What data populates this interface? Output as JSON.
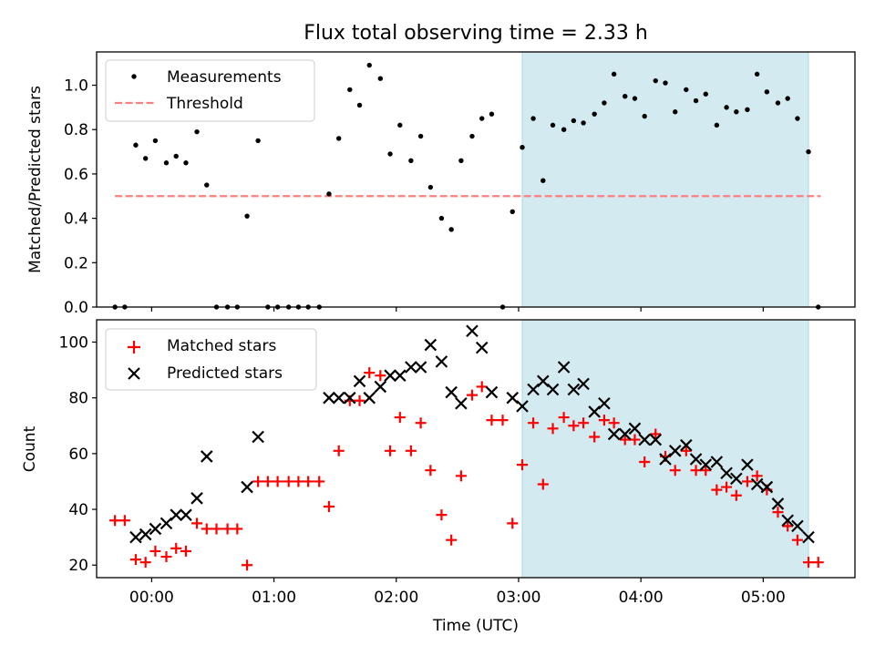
{
  "figure": {
    "title": "Flux total observing time = 2.33 h"
  },
  "colors": {
    "measurement": "#000000",
    "threshold": "#ff7f7f",
    "matched": "#ff0000",
    "predicted": "#000000",
    "shade": "#d3eaf0",
    "shade_edge": "#add8e6"
  },
  "chart_data": [
    {
      "type": "scatter",
      "panel": "top",
      "title": "Flux total observing time = 2.33 h",
      "xlabel": "",
      "ylabel": "Matched/Predicted stars",
      "xlim": [
        -0.45,
        5.75
      ],
      "ylim": [
        0,
        1.15
      ],
      "yticks": [
        0.0,
        0.2,
        0.4,
        0.6,
        0.8,
        1.0
      ],
      "ytick_labels": [
        "0.0",
        "0.2",
        "0.4",
        "0.6",
        "0.8",
        "1.0"
      ],
      "xticks": [
        0,
        1,
        2,
        3,
        4,
        5
      ],
      "shaded_x_range": [
        3.03,
        5.37
      ],
      "legend": {
        "position": "top-left",
        "entries": [
          "Measurements",
          "Threshold"
        ]
      },
      "threshold": {
        "name": "Threshold",
        "x": [
          -0.3,
          5.47
        ],
        "y": 0.5
      },
      "series": [
        {
          "name": "Measurements",
          "x": [
            -0.3,
            -0.22,
            -0.13,
            -0.05,
            0.03,
            0.12,
            0.2,
            0.28,
            0.37,
            0.45,
            0.53,
            0.62,
            0.7,
            0.78,
            0.87,
            0.95,
            1.03,
            1.12,
            1.2,
            1.28,
            1.37,
            1.45,
            1.53,
            1.62,
            1.7,
            1.78,
            1.87,
            1.95,
            2.03,
            2.12,
            2.2,
            2.28,
            2.37,
            2.45,
            2.53,
            2.62,
            2.7,
            2.78,
            2.87,
            2.95,
            3.03,
            3.12,
            3.2,
            3.28,
            3.37,
            3.45,
            3.53,
            3.62,
            3.7,
            3.78,
            3.87,
            3.95,
            4.03,
            4.12,
            4.2,
            4.28,
            4.37,
            4.45,
            4.53,
            4.62,
            4.7,
            4.78,
            4.87,
            4.95,
            5.03,
            5.12,
            5.2,
            5.28,
            5.37,
            5.45
          ],
          "y": [
            0,
            0,
            0.73,
            0.67,
            0.75,
            0.65,
            0.68,
            0.65,
            0.79,
            0.55,
            0,
            0,
            0,
            0.41,
            0.75,
            0,
            0,
            0,
            0,
            0,
            0,
            0.51,
            0.76,
            0.98,
            0.91,
            1.09,
            1.03,
            0.69,
            0.82,
            0.66,
            0.77,
            0.54,
            0.4,
            0.35,
            0.66,
            0.77,
            0.85,
            0.87,
            0,
            0.43,
            0.72,
            0.85,
            0.57,
            0.82,
            0.8,
            0.84,
            0.83,
            0.87,
            0.92,
            1.05,
            0.95,
            0.94,
            0.86,
            1.02,
            1.01,
            0.88,
            0.98,
            0.93,
            0.96,
            0.82,
            0.9,
            0.88,
            0.89,
            1.05,
            0.97,
            0.92,
            0.94,
            0.85,
            0.7,
            0
          ]
        }
      ]
    },
    {
      "type": "scatter",
      "panel": "bottom",
      "title": "",
      "xlabel": "Time (UTC)",
      "ylabel": "Count",
      "xlim": [
        -0.45,
        5.75
      ],
      "ylim": [
        15.5,
        108
      ],
      "yticks": [
        20,
        40,
        60,
        80,
        100
      ],
      "ytick_labels": [
        "20",
        "40",
        "60",
        "80",
        "100"
      ],
      "xticks": [
        0,
        1,
        2,
        3,
        4,
        5
      ],
      "xtick_labels": [
        "00:00",
        "01:00",
        "02:00",
        "03:00",
        "04:00",
        "05:00"
      ],
      "shaded_x_range": [
        3.03,
        5.37
      ],
      "legend": {
        "position": "top-left",
        "entries": [
          "Matched stars",
          "Predicted stars"
        ]
      },
      "series": [
        {
          "name": "Matched stars",
          "marker": "+",
          "x": [
            -0.3,
            -0.22,
            -0.13,
            -0.05,
            0.03,
            0.12,
            0.2,
            0.28,
            0.37,
            0.45,
            0.53,
            0.62,
            0.7,
            0.78,
            0.87,
            0.95,
            1.03,
            1.12,
            1.2,
            1.28,
            1.37,
            1.45,
            1.53,
            1.62,
            1.7,
            1.78,
            1.87,
            1.95,
            2.03,
            2.12,
            2.2,
            2.28,
            2.37,
            2.45,
            2.53,
            2.62,
            2.7,
            2.78,
            2.87,
            2.95,
            3.03,
            3.12,
            3.2,
            3.28,
            3.37,
            3.45,
            3.53,
            3.62,
            3.7,
            3.78,
            3.87,
            3.95,
            4.03,
            4.12,
            4.2,
            4.28,
            4.37,
            4.45,
            4.53,
            4.62,
            4.7,
            4.78,
            4.87,
            4.95,
            5.03,
            5.12,
            5.2,
            5.28,
            5.37,
            5.45
          ],
          "y": [
            36,
            36,
            22,
            21,
            25,
            23,
            26,
            25,
            35,
            33,
            33,
            33,
            33,
            20,
            50,
            50,
            50,
            50,
            50,
            50,
            50,
            41,
            61,
            79,
            79,
            89,
            88,
            61,
            73,
            61,
            71,
            54,
            38,
            29,
            52,
            81,
            84,
            72,
            72,
            35,
            56,
            71,
            49,
            69,
            73,
            70,
            71,
            66,
            72,
            71,
            65,
            65,
            57,
            67,
            59,
            54,
            61,
            54,
            54,
            47,
            48,
            45,
            50,
            52,
            47,
            39,
            34,
            29,
            21,
            21
          ]
        },
        {
          "name": "Predicted stars",
          "marker": "x",
          "x": [
            -0.13,
            -0.05,
            0.03,
            0.12,
            0.2,
            0.28,
            0.37,
            0.45,
            0.78,
            0.87,
            1.45,
            1.53,
            1.62,
            1.7,
            1.78,
            1.87,
            1.95,
            2.03,
            2.12,
            2.2,
            2.28,
            2.37,
            2.45,
            2.53,
            2.62,
            2.7,
            2.78,
            2.95,
            3.03,
            3.12,
            3.2,
            3.28,
            3.37,
            3.45,
            3.53,
            3.62,
            3.7,
            3.78,
            3.87,
            3.95,
            4.03,
            4.12,
            4.2,
            4.28,
            4.37,
            4.45,
            4.53,
            4.62,
            4.7,
            4.78,
            4.87,
            4.95,
            5.03,
            5.12,
            5.2,
            5.28,
            5.37
          ],
          "y": [
            30,
            31,
            33,
            35,
            38,
            38,
            44,
            59,
            48,
            66,
            80,
            80,
            80,
            86,
            80,
            84,
            88,
            88,
            91,
            91,
            99,
            93,
            82,
            78,
            104,
            98,
            82,
            80,
            77,
            83,
            86,
            83,
            91,
            83,
            85,
            75,
            78,
            67,
            67,
            69,
            65,
            65,
            58,
            61,
            63,
            58,
            56,
            57,
            53,
            51,
            56,
            49,
            48,
            42,
            36,
            34,
            30
          ]
        }
      ]
    }
  ]
}
